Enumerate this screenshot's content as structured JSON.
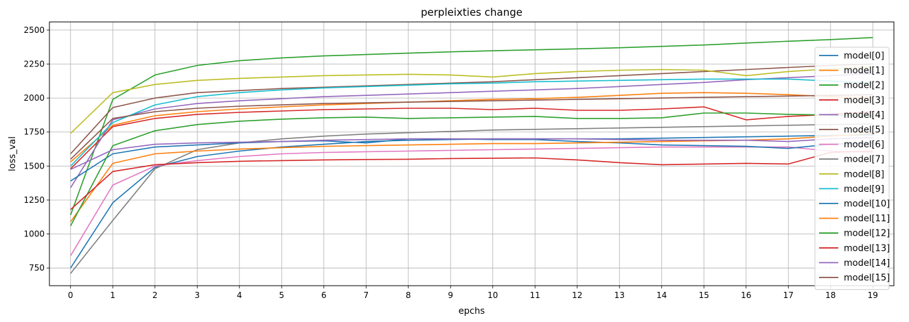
{
  "chart_data": {
    "type": "line",
    "title": "perpleixties change",
    "xlabel": "epchs",
    "ylabel": "loss_val",
    "xlim": [
      -0.5,
      19.5
    ],
    "ylim": [
      620,
      2560
    ],
    "x": [
      0,
      1,
      2,
      3,
      4,
      5,
      6,
      7,
      8,
      9,
      10,
      11,
      12,
      13,
      14,
      15,
      16,
      17,
      18,
      19
    ],
    "xticks": [
      "0",
      "1",
      "2",
      "3",
      "4",
      "5",
      "6",
      "7",
      "8",
      "9",
      "10",
      "11",
      "12",
      "13",
      "14",
      "15",
      "16",
      "17",
      "18",
      "19"
    ],
    "yticks": [
      750,
      1000,
      1250,
      1500,
      1750,
      2000,
      2250,
      2500
    ],
    "ytick_labels": [
      "750",
      "1000",
      "1250",
      "1500",
      "1750",
      "2000",
      "2250",
      "2500"
    ],
    "grid": true,
    "legend_position": "right",
    "series": [
      {
        "name": "model[0]",
        "color": "#1f77b4",
        "values": [
          750,
          1230,
          1490,
          1570,
          1610,
          1640,
          1660,
          1680,
          1690,
          1695,
          1700,
          1700,
          1700,
          1700,
          1705,
          1710,
          1715,
          1720,
          1725,
          1730
        ]
      },
      {
        "name": "model[1]",
        "color": "#ff7f0e",
        "values": [
          1530,
          1800,
          1870,
          1900,
          1920,
          1935,
          1950,
          1960,
          1970,
          1980,
          1990,
          1995,
          2005,
          2020,
          2035,
          2040,
          2035,
          2025,
          2010,
          2000
        ]
      },
      {
        "name": "model[2]",
        "color": "#2ca02c",
        "values": [
          1140,
          1990,
          2170,
          2240,
          2275,
          2295,
          2310,
          2320,
          2330,
          2340,
          2348,
          2355,
          2362,
          2370,
          2380,
          2390,
          2405,
          2418,
          2430,
          2445
        ]
      },
      {
        "name": "model[3]",
        "color": "#d62728",
        "values": [
          1480,
          1790,
          1850,
          1880,
          1895,
          1905,
          1915,
          1920,
          1925,
          1925,
          1915,
          1925,
          1910,
          1910,
          1920,
          1935,
          1840,
          1865,
          1880,
          1900
        ]
      },
      {
        "name": "model[4]",
        "color": "#9467bd",
        "values": [
          1340,
          1840,
          1920,
          1960,
          1980,
          1995,
          2010,
          2020,
          2030,
          2040,
          2050,
          2060,
          2070,
          2085,
          2100,
          2115,
          2135,
          2150,
          2165,
          2180
        ]
      },
      {
        "name": "model[5]",
        "color": "#8c564b",
        "values": [
          1590,
          1930,
          2000,
          2040,
          2055,
          2070,
          2080,
          2090,
          2100,
          2110,
          2120,
          2135,
          2150,
          2165,
          2180,
          2195,
          2210,
          2225,
          2240,
          2250
        ]
      },
      {
        "name": "model[6]",
        "color": "#e377c2",
        "values": [
          840,
          1360,
          1500,
          1540,
          1570,
          1590,
          1600,
          1605,
          1610,
          1615,
          1620,
          1625,
          1630,
          1635,
          1640,
          1640,
          1640,
          1640,
          1610,
          1600
        ]
      },
      {
        "name": "model[7]",
        "color": "#7f7f7f",
        "values": [
          710,
          1100,
          1480,
          1620,
          1670,
          1700,
          1720,
          1735,
          1745,
          1755,
          1765,
          1770,
          1775,
          1780,
          1785,
          1790,
          1795,
          1800,
          1805,
          1810
        ]
      },
      {
        "name": "model[8]",
        "color": "#bcbd22",
        "values": [
          1740,
          2040,
          2100,
          2130,
          2145,
          2155,
          2165,
          2170,
          2175,
          2170,
          2155,
          2180,
          2195,
          2205,
          2210,
          2205,
          2165,
          2195,
          2215,
          2230
        ]
      },
      {
        "name": "model[9]",
        "color": "#17becf",
        "values": [
          1500,
          1820,
          1950,
          2010,
          2040,
          2060,
          2075,
          2085,
          2095,
          2105,
          2110,
          2120,
          2125,
          2130,
          2135,
          2140,
          2140,
          2140,
          2125,
          2110
        ]
      },
      {
        "name": "model[10]",
        "color": "#1f77b4",
        "values": [
          1390,
          1590,
          1640,
          1655,
          1670,
          1680,
          1685,
          1670,
          1700,
          1700,
          1695,
          1695,
          1680,
          1670,
          1655,
          1650,
          1645,
          1630,
          1660,
          1670
        ]
      },
      {
        "name": "model[11]",
        "color": "#ff7f0e",
        "values": [
          1090,
          1520,
          1590,
          1610,
          1625,
          1635,
          1645,
          1650,
          1655,
          1660,
          1665,
          1665,
          1670,
          1675,
          1680,
          1685,
          1690,
          1700,
          1720,
          1740
        ]
      },
      {
        "name": "model[12]",
        "color": "#2ca02c",
        "values": [
          1060,
          1650,
          1760,
          1805,
          1830,
          1845,
          1855,
          1860,
          1850,
          1855,
          1860,
          1865,
          1850,
          1850,
          1855,
          1890,
          1890,
          1880,
          1875,
          1870
        ]
      },
      {
        "name": "model[13]",
        "color": "#d62728",
        "values": [
          1180,
          1460,
          1510,
          1525,
          1535,
          1540,
          1545,
          1548,
          1550,
          1555,
          1558,
          1560,
          1545,
          1525,
          1510,
          1515,
          1520,
          1515,
          1600,
          1610
        ]
      },
      {
        "name": "model[14]",
        "color": "#9467bd",
        "values": [
          1475,
          1620,
          1660,
          1670,
          1675,
          1680,
          1690,
          1695,
          1700,
          1700,
          1700,
          1700,
          1700,
          1695,
          1690,
          1690,
          1690,
          1680,
          1700,
          1710
        ]
      },
      {
        "name": "model[15]",
        "color": "#8c564b",
        "values": [
          1550,
          1850,
          1900,
          1925,
          1940,
          1950,
          1960,
          1965,
          1970,
          1975,
          1980,
          1985,
          1990,
          1995,
          2000,
          2005,
          2010,
          2015,
          2020,
          2025
        ]
      }
    ]
  }
}
